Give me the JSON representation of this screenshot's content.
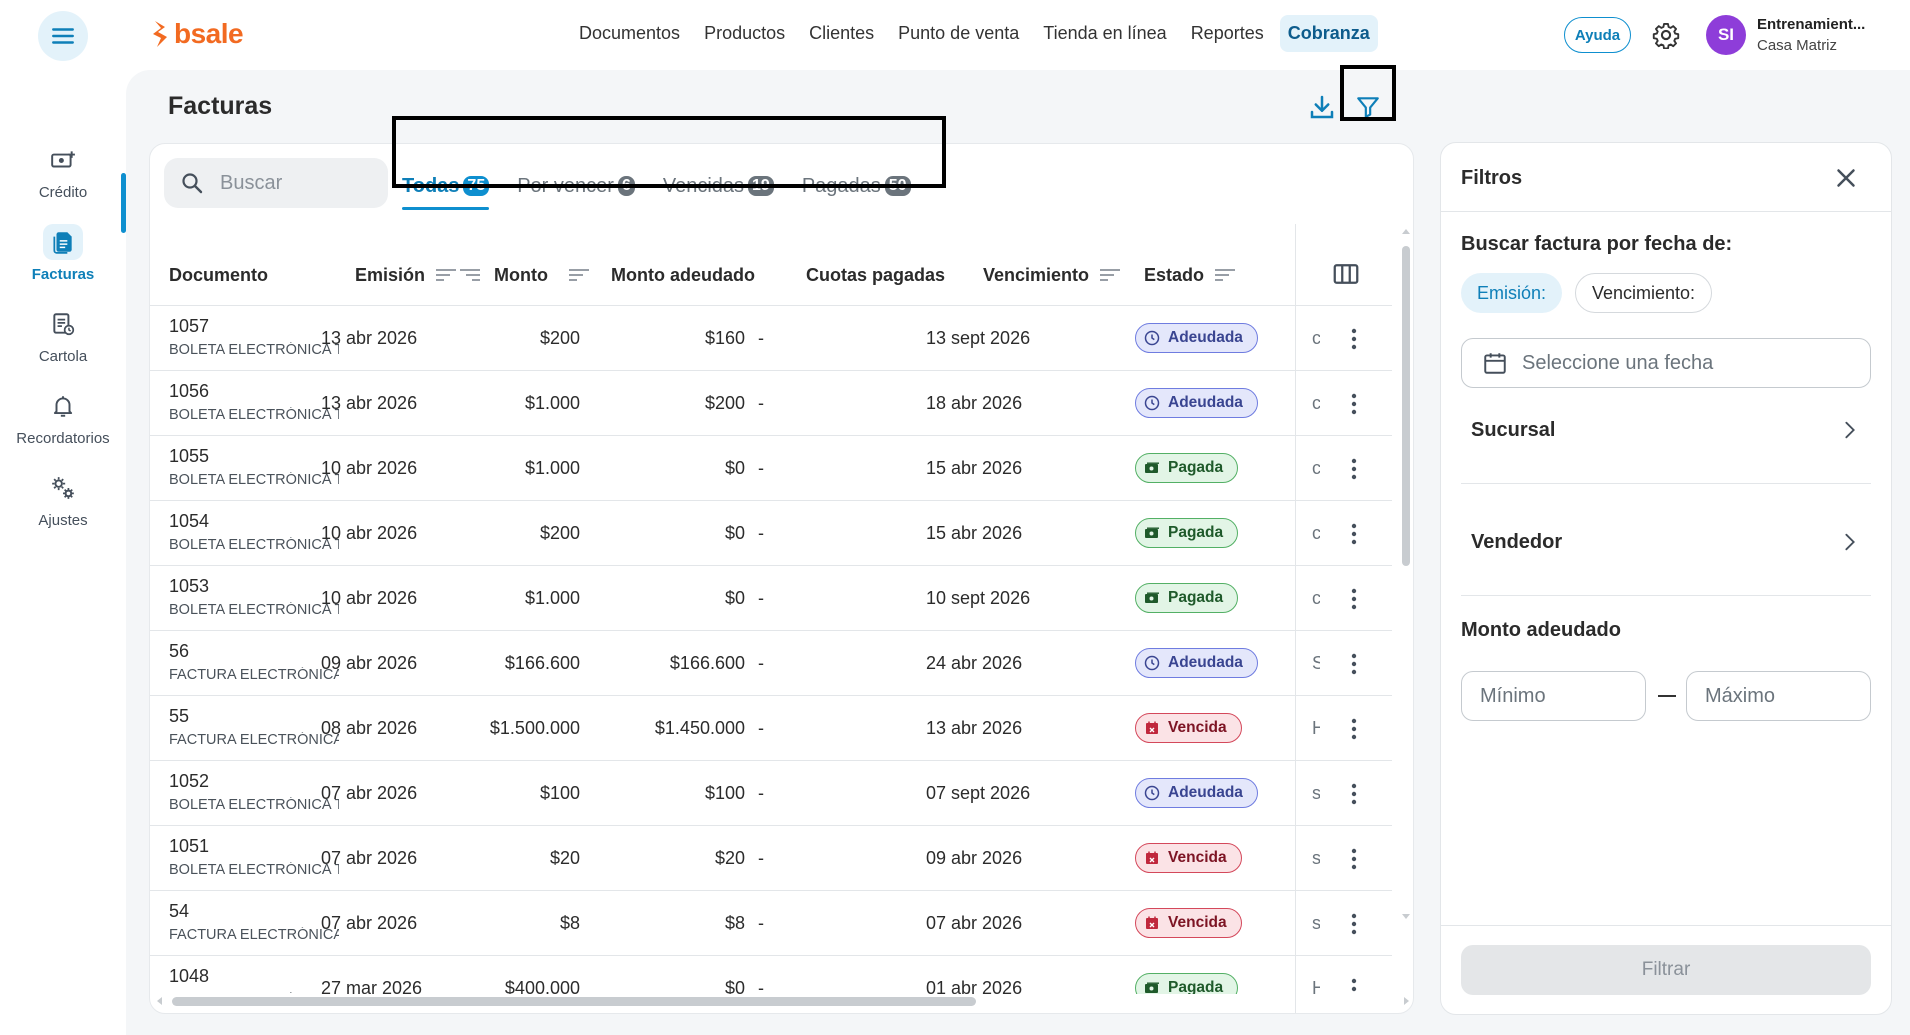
{
  "app": {
    "logo_text": "bsale",
    "brand_color": "#f26a21",
    "accent_color": "#0e8fcf"
  },
  "nav": {
    "items": [
      "Documentos",
      "Productos",
      "Clientes",
      "Punto de venta",
      "Tienda en línea",
      "Reportes",
      "Cobranza"
    ],
    "active": "Cobranza"
  },
  "header": {
    "help_label": "Ayuda",
    "avatar_initials": "SI",
    "user_name": "Entrenamient...",
    "branch": "Casa Matriz"
  },
  "sidebar": {
    "items": [
      {
        "label": "Crédito",
        "icon": "money-plus-icon"
      },
      {
        "label": "Facturas",
        "icon": "document-icon",
        "active": true
      },
      {
        "label": "Cartola",
        "icon": "statement-icon"
      },
      {
        "label": "Recordatorios",
        "icon": "bell-icon"
      },
      {
        "label": "Ajustes",
        "icon": "gears-icon"
      }
    ]
  },
  "page": {
    "title": "Facturas"
  },
  "search": {
    "placeholder": "Buscar"
  },
  "tabs": [
    {
      "label": "Todas",
      "count": "75",
      "active": true
    },
    {
      "label": "Por vencer",
      "count": "6"
    },
    {
      "label": "Vencidas",
      "count": "19"
    },
    {
      "label": "Pagadas",
      "count": "50"
    }
  ],
  "table": {
    "columns": {
      "documento": "Documento",
      "emision": "Emisión",
      "monto": "Monto",
      "monto_adeudado": "Monto adeudado",
      "cuotas": "Cuotas pagadas",
      "vencimiento": "Vencimiento",
      "estado": "Estado"
    },
    "rows": [
      {
        "num": "1057",
        "type": "BOLETA ELECTRÓNICA T",
        "emision": "13 abr 2026",
        "monto": "$200",
        "adeudado": "$160",
        "cuotas": "-",
        "vencimiento": "13 sept 2026",
        "estado": "Adeudada",
        "status_key": "adeudada",
        "clipped": "c"
      },
      {
        "num": "1056",
        "type": "BOLETA ELECTRÓNICA T",
        "emision": "13 abr 2026",
        "monto": "$1.000",
        "adeudado": "$200",
        "cuotas": "-",
        "vencimiento": "18 abr 2026",
        "estado": "Adeudada",
        "status_key": "adeudada",
        "clipped": "c"
      },
      {
        "num": "1055",
        "type": "BOLETA ELECTRÓNICA T",
        "emision": "10 abr 2026",
        "monto": "$1.000",
        "adeudado": "$0",
        "cuotas": "-",
        "vencimiento": "15 abr 2026",
        "estado": "Pagada",
        "status_key": "pagada",
        "clipped": "c"
      },
      {
        "num": "1054",
        "type": "BOLETA ELECTRÓNICA T",
        "emision": "10 abr 2026",
        "monto": "$200",
        "adeudado": "$0",
        "cuotas": "-",
        "vencimiento": "15 abr 2026",
        "estado": "Pagada",
        "status_key": "pagada",
        "clipped": "c"
      },
      {
        "num": "1053",
        "type": "BOLETA ELECTRÓNICA T",
        "emision": "10 abr 2026",
        "monto": "$1.000",
        "adeudado": "$0",
        "cuotas": "-",
        "vencimiento": "10 sept 2026",
        "estado": "Pagada",
        "status_key": "pagada",
        "clipped": "c"
      },
      {
        "num": "56",
        "type": "FACTURA ELECTRÓNICA",
        "emision": "09 abr 2026",
        "monto": "$166.600",
        "adeudado": "$166.600",
        "cuotas": "-",
        "vencimiento": "24 abr 2026",
        "estado": "Adeudada",
        "status_key": "adeudada",
        "clipped": "S"
      },
      {
        "num": "55",
        "type": "FACTURA ELECTRÓNICA",
        "emision": "08 abr 2026",
        "monto": "$1.500.000",
        "adeudado": "$1.450.000",
        "cuotas": "-",
        "vencimiento": "13 abr 2026",
        "estado": "Vencida",
        "status_key": "vencida",
        "clipped": "H"
      },
      {
        "num": "1052",
        "type": "BOLETA ELECTRÓNICA T",
        "emision": "07 abr 2026",
        "monto": "$100",
        "adeudado": "$100",
        "cuotas": "-",
        "vencimiento": "07 sept 2026",
        "estado": "Adeudada",
        "status_key": "adeudada",
        "clipped": "s"
      },
      {
        "num": "1051",
        "type": "BOLETA ELECTRÓNICA T",
        "emision": "07 abr 2026",
        "monto": "$20",
        "adeudado": "$20",
        "cuotas": "-",
        "vencimiento": "09 abr 2026",
        "estado": "Vencida",
        "status_key": "vencida",
        "clipped": "s"
      },
      {
        "num": "54",
        "type": "FACTURA ELECTRÓNICA",
        "emision": "07 abr 2026",
        "monto": "$8",
        "adeudado": "$8",
        "cuotas": "-",
        "vencimiento": "07 abr 2026",
        "estado": "Vencida",
        "status_key": "vencida",
        "clipped": "s"
      },
      {
        "num": "1048",
        "type": "BOLETA ELECTRÓNICA T",
        "emision": "27 mar 2026",
        "monto": "$400.000",
        "adeudado": "$0",
        "cuotas": "-",
        "vencimiento": "01 abr 2026",
        "estado": "Pagada",
        "status_key": "pagada",
        "clipped": "H"
      }
    ]
  },
  "filters": {
    "title": "Filtros",
    "date_label": "Buscar factura por fecha de:",
    "date_options": [
      "Emisión:",
      "Vencimiento:"
    ],
    "date_placeholder": "Seleccione una fecha",
    "sucursal_label": "Sucursal",
    "vendedor_label": "Vendedor",
    "monto_label": "Monto adeudado",
    "min_placeholder": "Mínimo",
    "max_placeholder": "Máximo",
    "submit_label": "Filtrar"
  }
}
